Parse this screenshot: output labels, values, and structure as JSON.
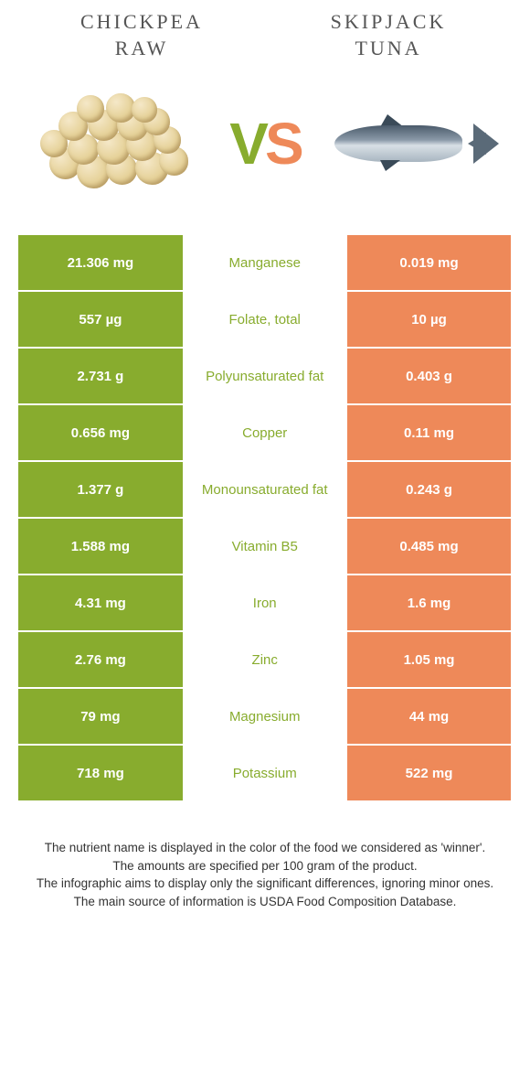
{
  "colors": {
    "left_food": "#88ac2e",
    "right_food": "#ee8959",
    "mid_bg": "#ffffff",
    "text_on_color": "#ffffff"
  },
  "header": {
    "left_title_line1": "CHICKPEA",
    "left_title_line2": "RAW",
    "right_title_line1": "SKIPJACK",
    "right_title_line2": "TUNA"
  },
  "vs": {
    "v_color": "#88ac2e",
    "s_color": "#ee8959"
  },
  "rows": [
    {
      "left": "21.306 mg",
      "label": "Manganese",
      "right": "0.019 mg",
      "winner": "left"
    },
    {
      "left": "557 µg",
      "label": "Folate, total",
      "right": "10 µg",
      "winner": "left"
    },
    {
      "left": "2.731 g",
      "label": "Polyunsaturated fat",
      "right": "0.403 g",
      "winner": "left"
    },
    {
      "left": "0.656 mg",
      "label": "Copper",
      "right": "0.11 mg",
      "winner": "left"
    },
    {
      "left": "1.377 g",
      "label": "Monounsaturated fat",
      "right": "0.243 g",
      "winner": "left"
    },
    {
      "left": "1.588 mg",
      "label": "Vitamin B5",
      "right": "0.485 mg",
      "winner": "left"
    },
    {
      "left": "4.31 mg",
      "label": "Iron",
      "right": "1.6 mg",
      "winner": "left"
    },
    {
      "left": "2.76 mg",
      "label": "Zinc",
      "right": "1.05 mg",
      "winner": "left"
    },
    {
      "left": "79 mg",
      "label": "Magnesium",
      "right": "44 mg",
      "winner": "left"
    },
    {
      "left": "718 mg",
      "label": "Potassium",
      "right": "522 mg",
      "winner": "left"
    }
  ],
  "footer": {
    "line1": "The nutrient name is displayed in the color of the food we considered as 'winner'.",
    "line2": "The amounts are specified per 100 gram of the product.",
    "line3": "The infographic aims to display only the significant differences, ignoring minor ones.",
    "line4": "The main source of information is USDA Food Composition Database."
  }
}
